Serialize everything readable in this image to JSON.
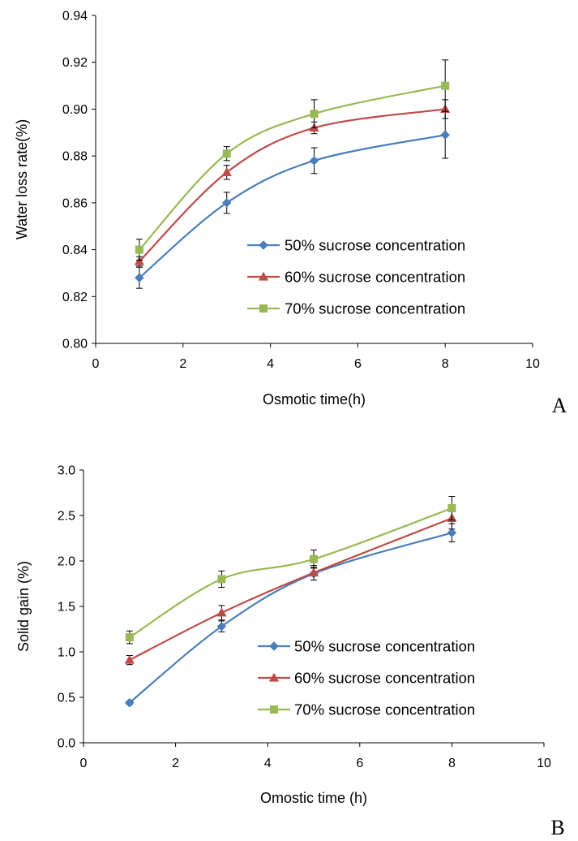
{
  "chart_data": [
    {
      "type": "line",
      "panel_label": "A",
      "title": "",
      "xlabel": "Osmotic time(h)",
      "ylabel": "Water loss rate(%)",
      "xlim": [
        0,
        10
      ],
      "ylim": [
        0.8,
        0.94
      ],
      "xticks": [
        0,
        2,
        4,
        6,
        8,
        10
      ],
      "yticks": [
        0.8,
        0.82,
        0.84,
        0.86,
        0.88,
        0.9,
        0.92,
        0.94
      ],
      "ytick_decimals": 2,
      "x": [
        1,
        3,
        5,
        8
      ],
      "grid": false,
      "legend_position": "center-right",
      "series": [
        {
          "name": "50% sucrose concentration",
          "values": [
            0.828,
            0.86,
            0.878,
            0.889
          ],
          "errors": [
            0.0045,
            0.0045,
            0.0055,
            0.01
          ],
          "color": "#4a7ebb",
          "marker": "diamond"
        },
        {
          "name": "60% sucrose concentration",
          "values": [
            0.835,
            0.873,
            0.892,
            0.9
          ],
          "errors": [
            0.002,
            0.003,
            0.0025,
            0.004
          ],
          "color": "#be4b48",
          "marker": "triangle"
        },
        {
          "name": "70% sucrose concentration",
          "values": [
            0.84,
            0.881,
            0.898,
            0.91
          ],
          "errors": [
            0.0045,
            0.003,
            0.006,
            0.011
          ],
          "color": "#98b954",
          "marker": "square"
        }
      ]
    },
    {
      "type": "line",
      "panel_label": "B",
      "title": "",
      "xlabel": "Omostic time (h)",
      "ylabel": "Solid gain (%)",
      "xlim": [
        0,
        10
      ],
      "ylim": [
        0.0,
        3.0
      ],
      "xticks": [
        0,
        2,
        4,
        6,
        8,
        10
      ],
      "yticks": [
        0.0,
        0.5,
        1.0,
        1.5,
        2.0,
        2.5,
        3.0
      ],
      "ytick_decimals": 1,
      "x": [
        1,
        3,
        5,
        8
      ],
      "grid": false,
      "legend_position": "center-right",
      "series": [
        {
          "name": "50% sucrose concentration",
          "values": [
            0.44,
            1.28,
            1.86,
            2.31
          ],
          "errors": [
            0.02,
            0.06,
            0.07,
            0.1
          ],
          "color": "#4a7ebb",
          "marker": "diamond"
        },
        {
          "name": "60% sucrose concentration",
          "values": [
            0.91,
            1.43,
            1.87,
            2.47
          ],
          "errors": [
            0.05,
            0.08,
            0.08,
            0.12
          ],
          "color": "#be4b48",
          "marker": "triangle"
        },
        {
          "name": "70% sucrose concentration",
          "values": [
            1.16,
            1.8,
            2.02,
            2.58
          ],
          "errors": [
            0.07,
            0.09,
            0.1,
            0.13
          ],
          "color": "#98b954",
          "marker": "square"
        }
      ]
    }
  ]
}
